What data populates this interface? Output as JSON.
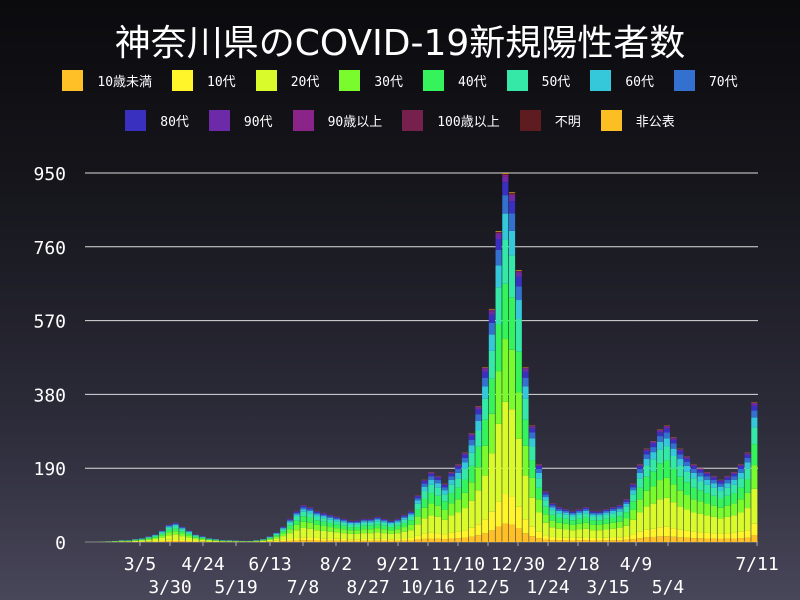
{
  "chart_data": {
    "type": "bar",
    "stacked": true,
    "title": "神奈川県のCOVID-19新規陽性者数",
    "xlabel": "",
    "ylabel": "",
    "ylim": [
      0,
      1000
    ],
    "yticks": [
      "0",
      "190",
      "380",
      "570",
      "760",
      "950"
    ],
    "grid": "horizontal",
    "legend_placement": "top",
    "xtick_labels": [
      "3/5",
      "3/30",
      "4/24",
      "5/19",
      "6/13",
      "7/8",
      "8/2",
      "8/27",
      "9/21",
      "10/16",
      "11/10",
      "12/5",
      "12/30",
      "1/24",
      "2/18",
      "3/15",
      "4/9",
      "5/4",
      "7/11"
    ],
    "x": [
      "3/1",
      "3/6",
      "3/11",
      "3/16",
      "3/21",
      "3/26",
      "3/31",
      "4/5",
      "4/10",
      "4/15",
      "4/20",
      "4/25",
      "4/30",
      "5/5",
      "5/10",
      "5/15",
      "5/20",
      "5/25",
      "5/30",
      "6/4",
      "6/9",
      "6/14",
      "6/19",
      "6/24",
      "6/29",
      "7/4",
      "7/9",
      "7/14",
      "7/19",
      "7/24",
      "7/29",
      "8/3",
      "8/8",
      "8/13",
      "8/18",
      "8/23",
      "8/28",
      "9/2",
      "9/7",
      "9/12",
      "9/17",
      "9/22",
      "9/27",
      "10/2",
      "10/7",
      "10/12",
      "10/17",
      "10/22",
      "10/27",
      "11/1",
      "11/6",
      "11/11",
      "11/16",
      "11/21",
      "11/26",
      "12/1",
      "12/6",
      "12/11",
      "12/16",
      "12/21",
      "12/26",
      "12/31",
      "1/5",
      "1/10",
      "1/15",
      "1/20",
      "1/25",
      "1/30",
      "2/4",
      "2/9",
      "2/14",
      "2/19",
      "2/24",
      "3/1",
      "3/6",
      "3/11",
      "3/16",
      "3/21",
      "3/26",
      "3/31",
      "4/5",
      "4/10",
      "4/15",
      "4/20",
      "4/25",
      "4/30",
      "5/5",
      "5/10",
      "5/15",
      "5/20",
      "5/25",
      "5/30",
      "6/4",
      "6/9",
      "6/14",
      "6/19",
      "6/24",
      "6/29",
      "7/4",
      "7/9"
    ],
    "totals": [
      0,
      0,
      1,
      2,
      3,
      5,
      5,
      8,
      10,
      15,
      20,
      30,
      45,
      50,
      40,
      30,
      20,
      15,
      10,
      8,
      5,
      5,
      4,
      3,
      3,
      5,
      8,
      15,
      25,
      40,
      60,
      80,
      95,
      90,
      80,
      75,
      70,
      65,
      60,
      55,
      55,
      60,
      60,
      65,
      60,
      55,
      60,
      70,
      80,
      120,
      160,
      180,
      170,
      150,
      180,
      200,
      230,
      280,
      350,
      450,
      600,
      800,
      950,
      900,
      700,
      450,
      300,
      200,
      130,
      100,
      90,
      85,
      80,
      85,
      90,
      80,
      80,
      85,
      90,
      95,
      110,
      150,
      200,
      240,
      260,
      290,
      300,
      270,
      240,
      220,
      200,
      190,
      180,
      170,
      160,
      170,
      180,
      200,
      230,
      360
    ],
    "series": [
      {
        "name": "10歳未満",
        "color": "#ffbf26",
        "approx_share": 0.05
      },
      {
        "name": "10代",
        "color": "#fff52a",
        "approx_share": 0.08
      },
      {
        "name": "20代",
        "color": "#d9fb2b",
        "approx_share": 0.25
      },
      {
        "name": "30代",
        "color": "#79fb2e",
        "approx_share": 0.17
      },
      {
        "name": "40代",
        "color": "#35f35a",
        "approx_share": 0.15
      },
      {
        "name": "50代",
        "color": "#35e8a8",
        "approx_share": 0.12
      },
      {
        "name": "60代",
        "color": "#35c8da",
        "approx_share": 0.07
      },
      {
        "name": "70代",
        "color": "#3470cf",
        "approx_share": 0.05
      },
      {
        "name": "80代",
        "color": "#3a30c0",
        "approx_share": 0.035
      },
      {
        "name": "90代",
        "color": "#6c2aa8",
        "approx_share": 0.015
      },
      {
        "name": "90歳以上",
        "color": "#8b2488",
        "approx_share": 0.005
      },
      {
        "name": "100歳以上",
        "color": "#76204e",
        "approx_share": 0.001
      },
      {
        "name": "不明",
        "color": "#5e1c20",
        "approx_share": 0.002
      },
      {
        "name": "非公表",
        "color": "#fbbf24",
        "approx_share": 0.002
      }
    ]
  }
}
